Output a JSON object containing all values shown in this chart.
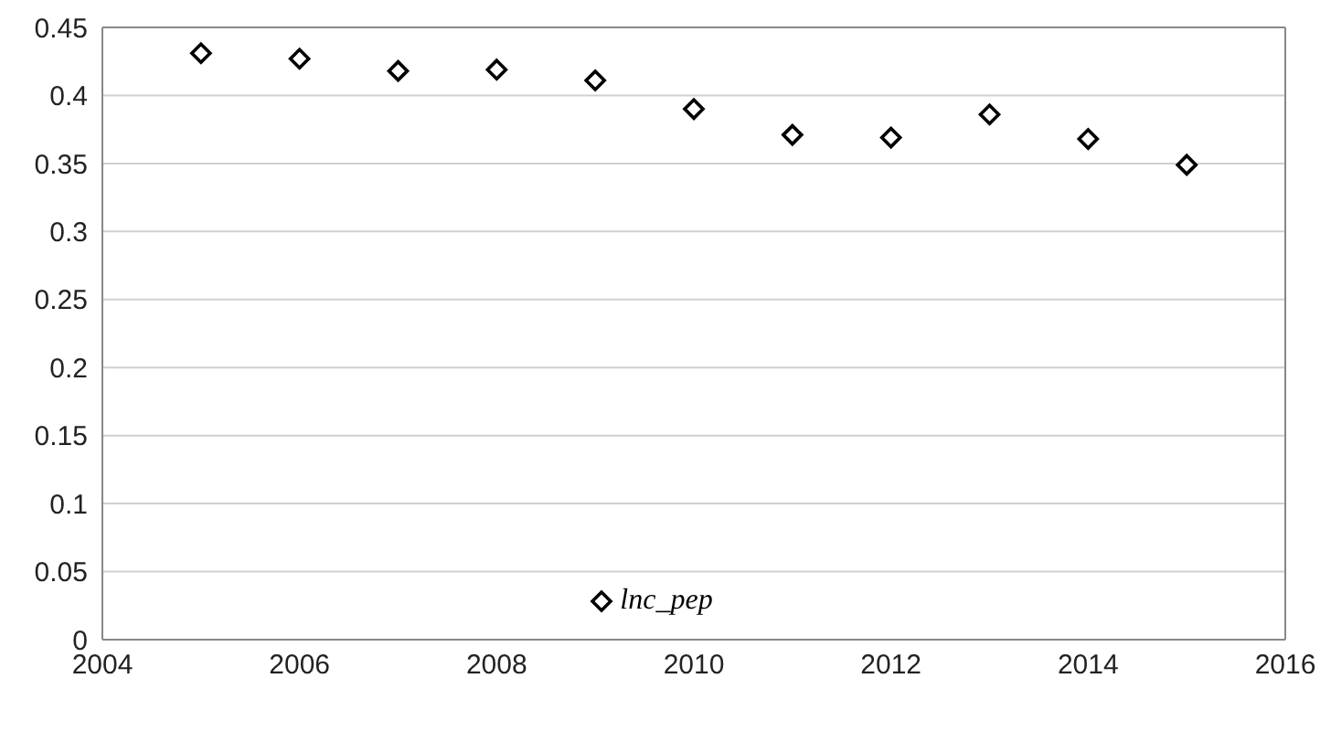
{
  "chart_data": {
    "type": "scatter",
    "x": [
      2005,
      2006,
      2007,
      2008,
      2009,
      2010,
      2011,
      2012,
      2013,
      2014,
      2015
    ],
    "series": [
      {
        "name": "lnc_pep",
        "color": "#000000",
        "values": [
          0.431,
          0.427,
          0.418,
          0.419,
          0.411,
          0.39,
          0.371,
          0.369,
          0.386,
          0.368,
          0.349
        ]
      }
    ],
    "xlim": [
      2004,
      2016
    ],
    "xticks": [
      2004,
      2006,
      2008,
      2010,
      2012,
      2014,
      2016
    ],
    "ylim": [
      0,
      0.45
    ],
    "yticks": [
      0,
      0.05,
      0.1,
      0.15,
      0.2,
      0.25,
      0.3,
      0.35,
      0.4,
      0.45
    ],
    "grid": "y",
    "legend": "bottom",
    "marker": "diamond"
  }
}
